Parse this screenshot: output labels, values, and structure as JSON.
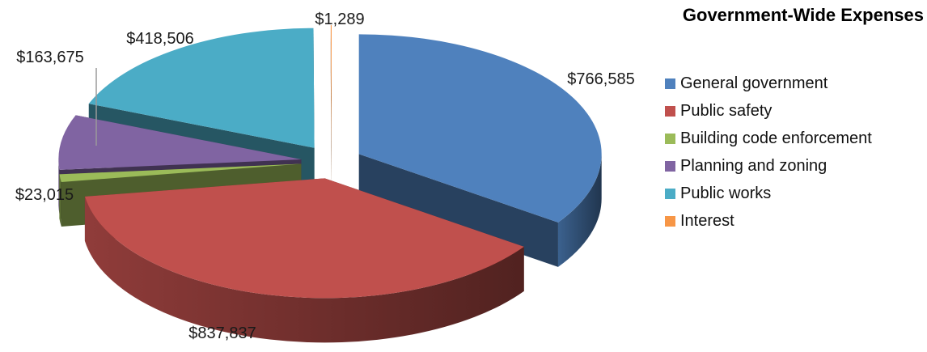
{
  "chart_data": {
    "type": "pie",
    "title": "Government-Wide Expenses",
    "three_d": true,
    "exploded": true,
    "legend_position": "right",
    "slices": [
      {
        "label": "General government",
        "value": 766585,
        "value_label": "$766,585",
        "color": "#4f81bd"
      },
      {
        "label": "Public safety",
        "value": 837837,
        "value_label": "$837,837",
        "color": "#c0504d"
      },
      {
        "label": "Building code enforcement",
        "value": 23015,
        "value_label": "$23,015",
        "color": "#9bbb59"
      },
      {
        "label": "Planning and zoning",
        "value": 163675,
        "value_label": "$163,675",
        "color": "#8064a2"
      },
      {
        "label": "Public works",
        "value": 418506,
        "value_label": "$418,506",
        "color": "#4bacc6"
      },
      {
        "label": "Interest",
        "value": 1289,
        "value_label": "$1,289",
        "color": "#f79646"
      }
    ]
  }
}
